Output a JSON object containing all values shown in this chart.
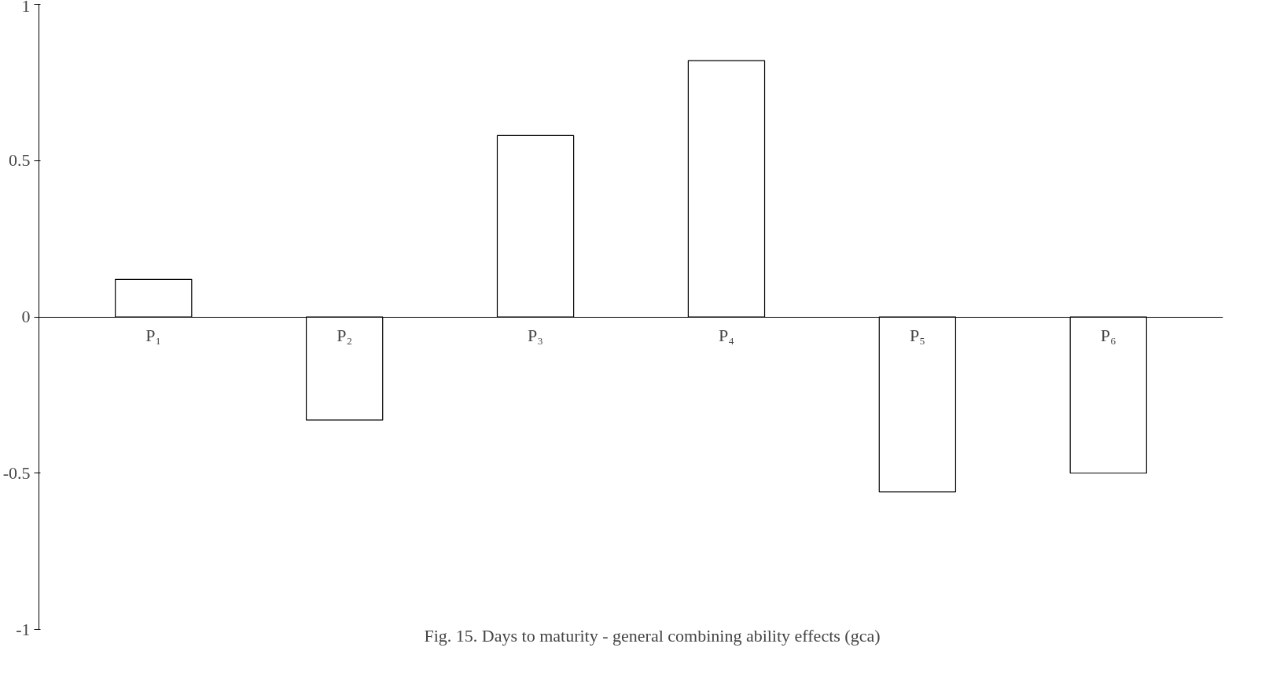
{
  "chart_data": {
    "type": "bar",
    "categories": [
      "P₁",
      "P₂",
      "P₃",
      "P₄",
      "P₅",
      "P₆"
    ],
    "values": [
      0.12,
      -0.33,
      0.58,
      0.82,
      -0.56,
      -0.5
    ],
    "color": "#ffffff",
    "ylim": [
      -1,
      1
    ],
    "yticks": [
      1,
      0.5,
      0,
      -0.5,
      -1
    ],
    "grid": false,
    "annotations": [
      "Fig. 15. Days to maturity - general combining ability effects (gca)"
    ]
  }
}
